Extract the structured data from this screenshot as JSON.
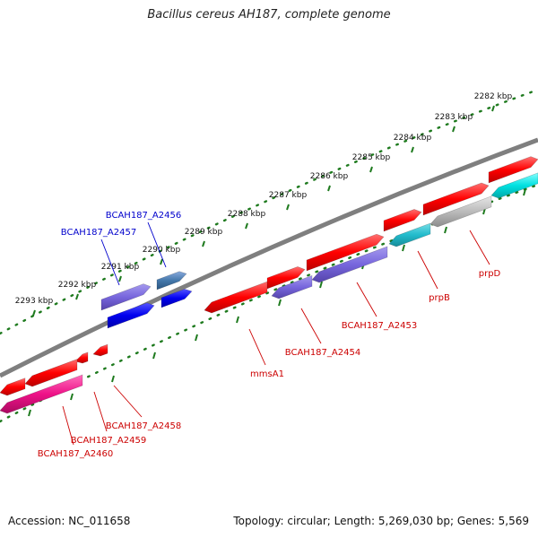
{
  "title": "Bacillus cereus AH187, complete genome",
  "footer": {
    "accession": "Accession: NC_011658",
    "summary": "Topology: circular; Length: 5,269,030 bp; Genes: 5,569"
  },
  "colors": {
    "backbone": "#7f7f7f",
    "ruler_dots": "#1e7a1e",
    "cds_red": "#ff0000",
    "cds_purple": "#7766dd",
    "cds_blue": "#0000ee",
    "cds_steel": "#4477aa",
    "cds_cyan": "#00e0e0",
    "cds_teal": "#22bbcc",
    "cds_gray": "#bbbbbb",
    "cds_pink": "#ee1188",
    "label_red": "#cc0000",
    "label_blue": "#0000cc"
  },
  "ruler": {
    "unit": "kbp",
    "ticks": [
      {
        "label": "2282 kbp"
      },
      {
        "label": "2283 kbp"
      },
      {
        "label": "2284 kbp"
      },
      {
        "label": "2285 kbp"
      },
      {
        "label": "2286 kbp"
      },
      {
        "label": "2287 kbp"
      },
      {
        "label": "2288 kbp"
      },
      {
        "label": "2289 kbp"
      },
      {
        "label": "2290 kbp"
      },
      {
        "label": "2291 kbp"
      },
      {
        "label": "2292 kbp"
      },
      {
        "label": "2293 kbp"
      }
    ]
  },
  "genes": [
    {
      "label": "BCAH187_A2456",
      "color_key": "label_blue"
    },
    {
      "label": "BCAH187_A2457",
      "color_key": "label_blue"
    },
    {
      "label": "prpD",
      "color_key": "label_red"
    },
    {
      "label": "prpB",
      "color_key": "label_red"
    },
    {
      "label": "BCAH187_A2453",
      "color_key": "label_red"
    },
    {
      "label": "BCAH187_A2454",
      "color_key": "label_red"
    },
    {
      "label": "mmsA1",
      "color_key": "label_red"
    },
    {
      "label": "BCAH187_A2458",
      "color_key": "label_red"
    },
    {
      "label": "BCAH187_A2459",
      "color_key": "label_red"
    },
    {
      "label": "BCAH187_A2460",
      "color_key": "label_red"
    }
  ]
}
